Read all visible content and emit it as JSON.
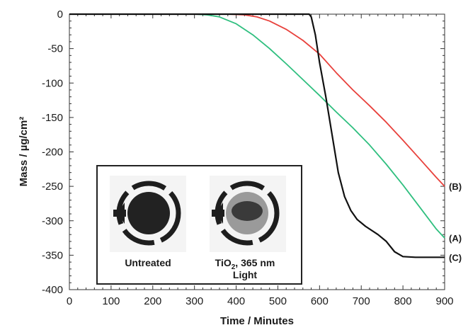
{
  "chart_data": {
    "type": "line",
    "title": "",
    "xlabel": "Time / Minutes",
    "ylabel": "Mass / µg/cm²",
    "xlim": [
      0,
      900
    ],
    "ylim": [
      -400,
      0
    ],
    "x_ticks": [
      0,
      100,
      200,
      300,
      400,
      500,
      600,
      700,
      800,
      900
    ],
    "y_ticks": [
      0,
      -50,
      -100,
      -150,
      -200,
      -250,
      -300,
      -350,
      -400
    ],
    "grid": false,
    "legend": "none",
    "series": [
      {
        "name": "(B)",
        "color": "#e8413c",
        "x": [
          0,
          300,
          380,
          420,
          450,
          480,
          520,
          560,
          600,
          640,
          680,
          720,
          760,
          800,
          840,
          880,
          900
        ],
        "y": [
          0,
          0,
          0,
          -1,
          -4,
          -10,
          -22,
          -38,
          -58,
          -85,
          -110,
          -133,
          -157,
          -183,
          -210,
          -237,
          -250
        ]
      },
      {
        "name": "(A)",
        "color": "#2fbf7f",
        "x": [
          0,
          300,
          330,
          360,
          400,
          440,
          480,
          520,
          560,
          600,
          640,
          680,
          720,
          760,
          800,
          840,
          880,
          900
        ],
        "y": [
          0,
          0,
          -1,
          -4,
          -14,
          -30,
          -50,
          -72,
          -95,
          -118,
          -142,
          -165,
          -190,
          -218,
          -248,
          -280,
          -312,
          -325
        ]
      },
      {
        "name": "(C)",
        "color": "#111111",
        "x": [
          0,
          575,
          580,
          590,
          600,
          615,
          630,
          645,
          660,
          675,
          690,
          710,
          740,
          760,
          780,
          800,
          830,
          900
        ],
        "y": [
          0,
          0,
          -4,
          -30,
          -70,
          -120,
          -175,
          -230,
          -265,
          -285,
          -298,
          -308,
          -320,
          -330,
          -345,
          -352,
          -353,
          -353
        ]
      }
    ],
    "series_labels": [
      "(B)",
      "(A)",
      "(C)"
    ],
    "inset": {
      "captions": [
        "Untreated",
        "TiO",
        "2",
        ", 365 nm",
        "Light"
      ]
    }
  }
}
